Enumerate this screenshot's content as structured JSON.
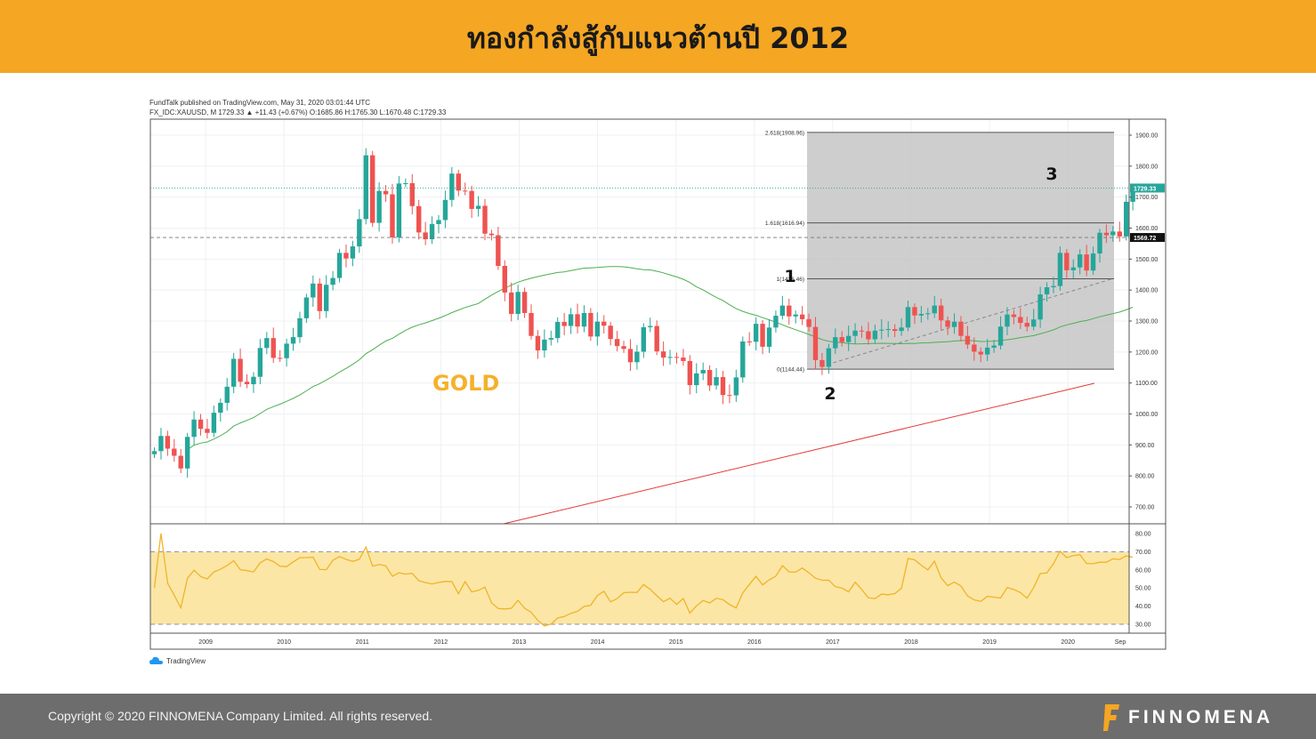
{
  "header": {
    "title": "ทองกำลังสู้กับแนวต้านปี 2012"
  },
  "footer": {
    "copyright": "Copyright © 2020 FINNOMENA Company Limited. All rights reserved.",
    "brand": "FINNOMENA"
  },
  "chart_info": {
    "publisher": "FundTalk published on TradingView.com, May 31, 2020 03:01:44 UTC",
    "symbol_line": "FX_IDC:XAUUSD, M  1729.33 ▲ +11.43 (+0.67%) O:1685.86 H:1765.30 L:1670.48 C:1729.33",
    "watermark": "TradingView"
  },
  "colors": {
    "banner": "#f5a623",
    "up": "#26a69a",
    "down": "#ef5350",
    "ma50": "#4caf50",
    "ma200": "#e53935",
    "rsi": "#f0b429",
    "rsi_band": "#fbe6a6",
    "fib_box": "#c6c6c6",
    "gold_label": "#f5b12a"
  },
  "chart_data": {
    "type": "candlestick",
    "symbol": "FX_IDC:XAUUSD",
    "interval": "M",
    "ylim": [
      640,
      1930
    ],
    "yticks": [
      700,
      800,
      900,
      1000,
      1100,
      1200,
      1300,
      1400,
      1500,
      1600,
      1700,
      1800,
      1900
    ],
    "ytick_labels": [
      "700.00",
      "800.00",
      "900.00",
      "1000.00",
      "1100.00",
      "1200.00",
      "1300.00",
      "1400.00",
      "1500.00",
      "1600.00",
      "1700.00",
      "1800.00",
      "1900.00"
    ],
    "xticks": [
      "2009",
      "2010",
      "2011",
      "2012",
      "2013",
      "2014",
      "2015",
      "2016",
      "2017",
      "2018",
      "2019",
      "2020",
      "Sep"
    ],
    "last_price": 1729.33,
    "last_price_label": "1729.33",
    "resistance_level": 1569.72,
    "resistance_label": "1569.72",
    "main_label": "GOLD",
    "closes": [
      880,
      929,
      888,
      865,
      824,
      926,
      982,
      952,
      939,
      1004,
      1036,
      1088,
      1178,
      1104,
      1096,
      1120,
      1213,
      1245,
      1181,
      1180,
      1227,
      1248,
      1309,
      1376,
      1421,
      1332,
      1417,
      1439,
      1520,
      1502,
      1541,
      1629,
      1835,
      1617,
      1720,
      1709,
      1570,
      1744,
      1745,
      1671,
      1586,
      1564,
      1613,
      1626,
      1691,
      1776,
      1721,
      1720,
      1662,
      1672,
      1582,
      1577,
      1478,
      1392,
      1323,
      1394,
      1326,
      1252,
      1205,
      1240,
      1245,
      1297,
      1284,
      1322,
      1282,
      1326,
      1250,
      1298,
      1285,
      1242,
      1219,
      1210,
      1167,
      1201,
      1280,
      1284,
      1202,
      1182,
      1184,
      1182,
      1171,
      1093,
      1131,
      1142,
      1092,
      1119,
      1061,
      1060,
      1118,
      1234,
      1233,
      1291,
      1217,
      1279,
      1317,
      1350,
      1315,
      1321,
      1306,
      1281,
      1174,
      1152,
      1212,
      1248,
      1232,
      1252,
      1269,
      1267,
      1241,
      1269,
      1272,
      1274,
      1268,
      1279,
      1345,
      1318,
      1323,
      1325,
      1350,
      1302,
      1281,
      1298,
      1252,
      1224,
      1201,
      1192,
      1214,
      1221,
      1282,
      1321,
      1313,
      1294,
      1282,
      1305,
      1386,
      1409,
      1413,
      1520,
      1464,
      1473,
      1515,
      1463,
      1518,
      1585,
      1577,
      1589,
      1573,
      1685,
      1729
    ],
    "fib_levels": [
      {
        "label": "2.618(1908.96)",
        "value": 1908.96
      },
      {
        "label": "1.618(1616.94)",
        "value": 1616.94
      },
      {
        "label": "1(1436.46)",
        "value": 1436.46
      },
      {
        "label": "0(1144.44)",
        "value": 1144.44
      }
    ],
    "annotations": [
      "1",
      "2",
      "3"
    ],
    "rsi": {
      "ylim": [
        25,
        85
      ],
      "yticks": [
        30,
        40,
        50,
        60,
        70,
        80
      ],
      "ytick_labels": [
        "30.00",
        "40.00",
        "50.00",
        "60.00",
        "70.00",
        "80.00"
      ],
      "upper": 70,
      "lower": 30
    }
  }
}
